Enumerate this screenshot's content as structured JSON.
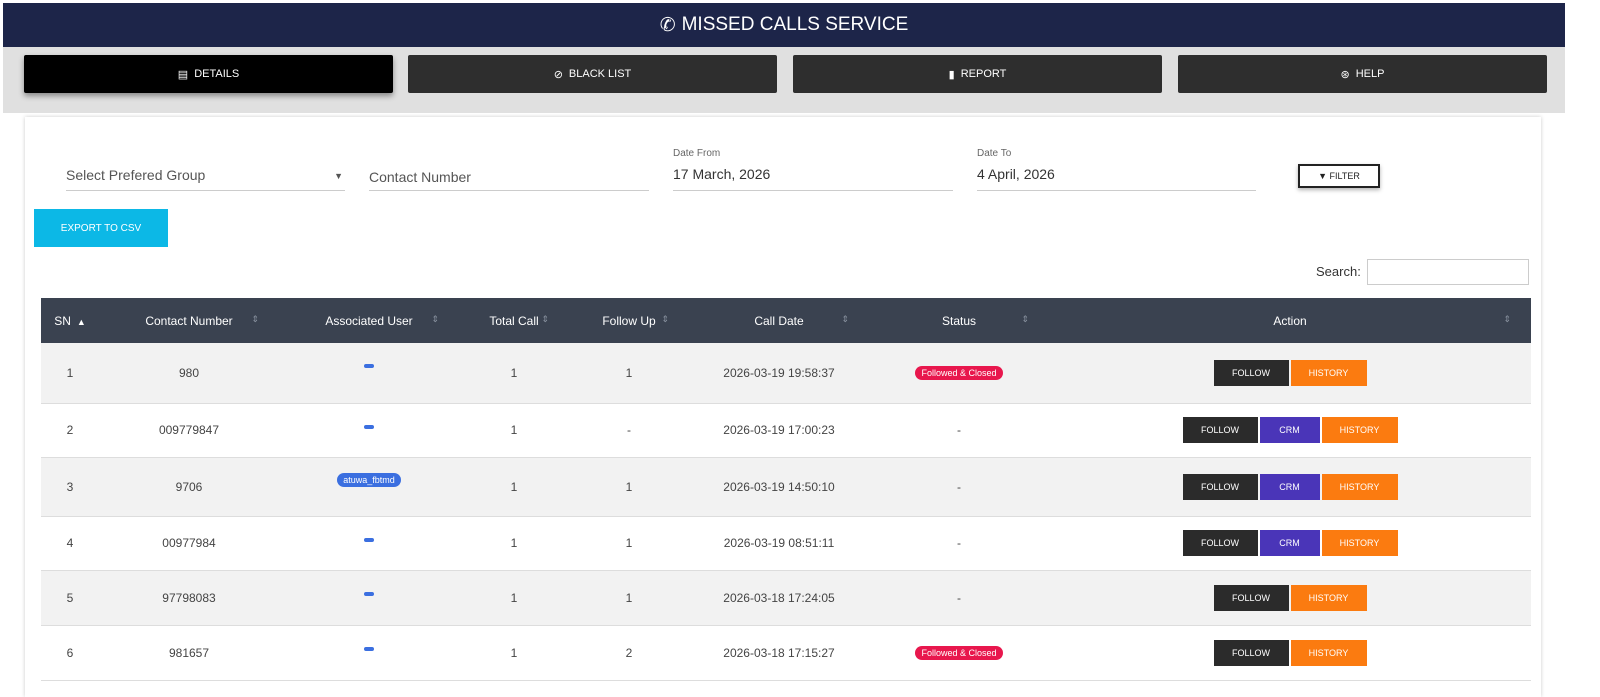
{
  "header": {
    "title": "MISSED CALLS SERVICE",
    "icon": "phone-volume-icon"
  },
  "tabs": [
    {
      "label": "DETAILS",
      "icon": "list-icon",
      "active": true
    },
    {
      "label": "BLACK LIST",
      "icon": "ban-icon"
    },
    {
      "label": "REPORT",
      "icon": "file-icon"
    },
    {
      "label": "HELP",
      "icon": "life-ring-icon"
    }
  ],
  "filters": {
    "group_placeholder": "Select Prefered Group",
    "contact_placeholder": "Contact Number",
    "date_from_label": "Date From",
    "date_from": "17 March, 2026",
    "date_to_label": "Date To",
    "date_to": "4 April, 2026",
    "filter_label": "FILTER",
    "export_label": "EXPORT TO CSV",
    "search_label": "Search:"
  },
  "table": {
    "columns": [
      "SN",
      "Contact Number",
      "Associated User",
      "Total Call",
      "Follow Up",
      "Call Date",
      "Status",
      "Action"
    ],
    "rows": [
      {
        "sn": "1",
        "contact": "980",
        "user": "",
        "total": "1",
        "follow": "1",
        "date": "2026-03-19 19:58:37",
        "status": "Followed & Closed",
        "crm": false
      },
      {
        "sn": "2",
        "contact": "009779847",
        "user": "",
        "total": "1",
        "follow": "-",
        "date": "2026-03-19 17:00:23",
        "status": "-",
        "crm": true
      },
      {
        "sn": "3",
        "contact": "9706",
        "user": "atuwa_fbtmd",
        "total": "1",
        "follow": "1",
        "date": "2026-03-19 14:50:10",
        "status": "-",
        "crm": true
      },
      {
        "sn": "4",
        "contact": "00977984",
        "user": "",
        "total": "1",
        "follow": "1",
        "date": "2026-03-19 08:51:11",
        "status": "-",
        "crm": true
      },
      {
        "sn": "5",
        "contact": "97798083",
        "user": "",
        "total": "1",
        "follow": "1",
        "date": "2026-03-18 17:24:05",
        "status": "-",
        "crm": false
      },
      {
        "sn": "6",
        "contact": "981657",
        "user": "",
        "total": "1",
        "follow": "2",
        "date": "2026-03-18 17:15:27",
        "status": "Followed & Closed",
        "crm": false
      }
    ]
  },
  "actions": {
    "follow": "FOLLOW",
    "crm": "CRM",
    "history": "HISTORY"
  }
}
